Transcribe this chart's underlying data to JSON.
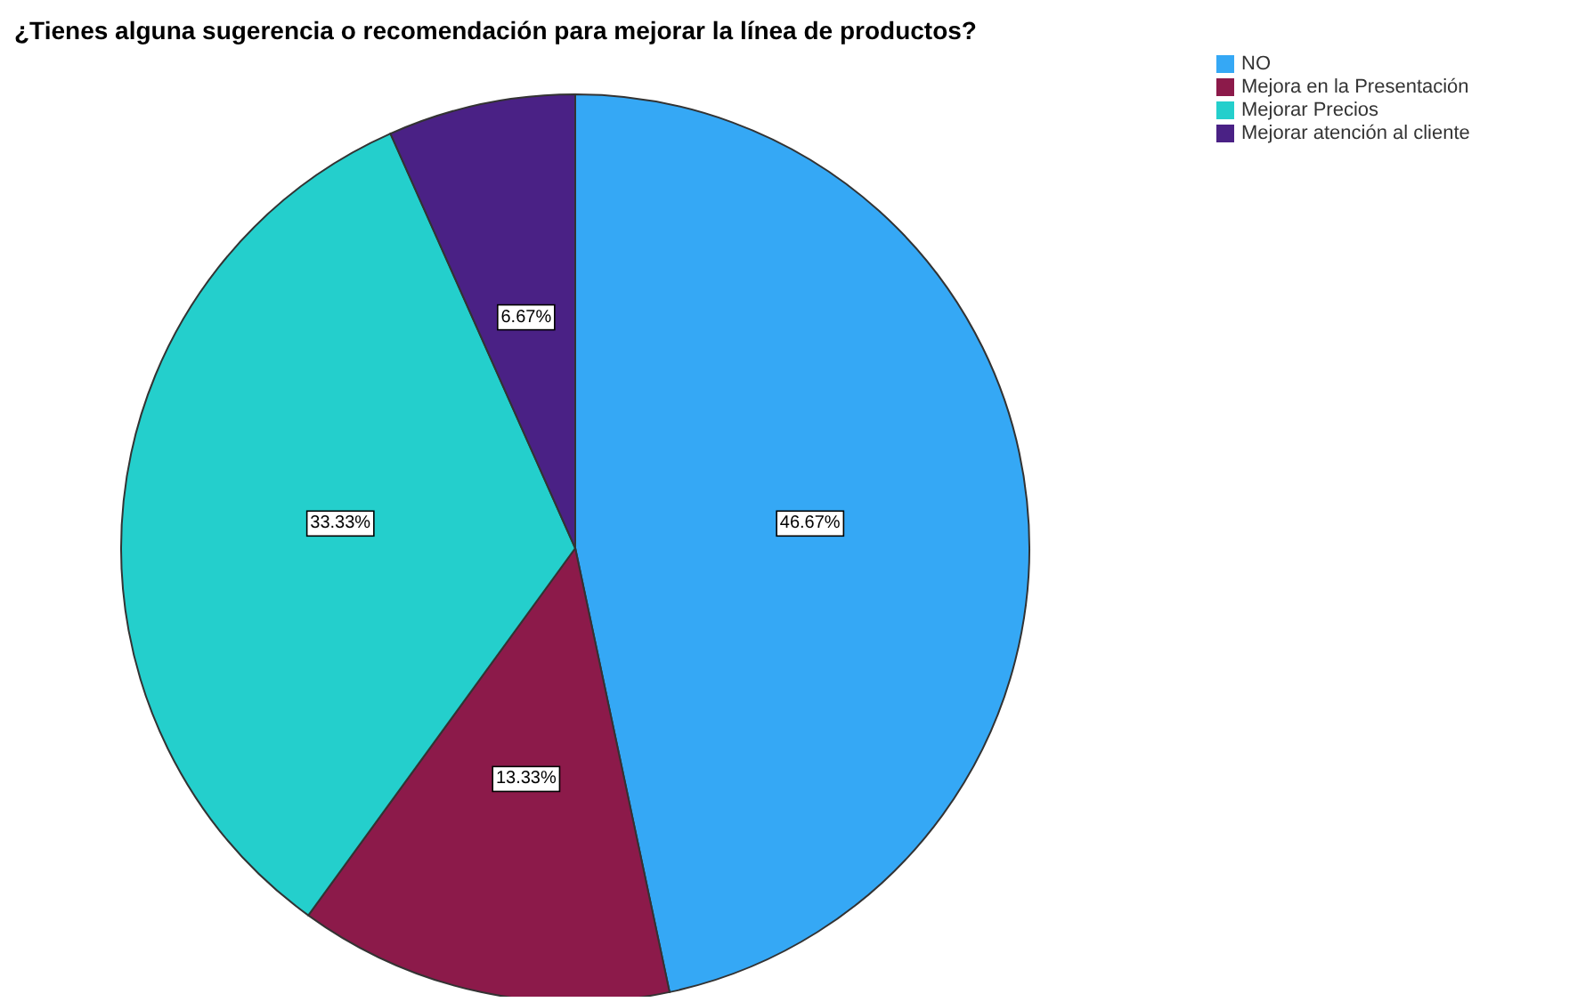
{
  "chart_data": {
    "type": "pie",
    "title": "¿Tienes alguna sugerencia o recomendación para mejorar la línea de productos?",
    "categories": [
      "NO",
      "Mejora en la Presentación",
      "Mejorar Precios",
      "Mejorar atención al cliente"
    ],
    "values": [
      46.67,
      13.33,
      33.33,
      6.67
    ],
    "colors": [
      "#35a8f5",
      "#8c1a4a",
      "#24cfcc",
      "#4a2185"
    ],
    "value_labels": [
      "46.67%",
      "13.33%",
      "33.33%",
      "6.67%"
    ],
    "legend": "top right"
  }
}
